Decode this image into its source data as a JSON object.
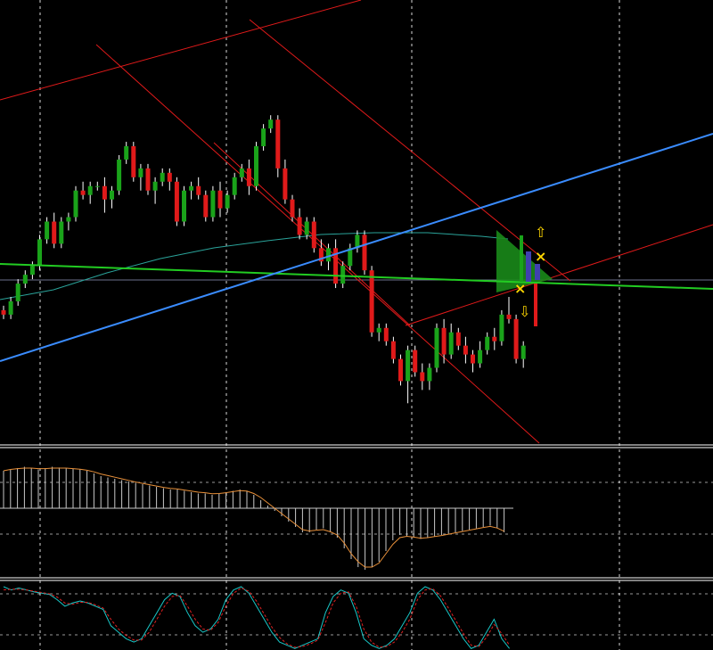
{
  "chart_data": [
    {
      "type": "candlestick",
      "pane": "price",
      "grid": true,
      "background": "#000000",
      "colors": {
        "bull": "#1aa31a",
        "bear": "#e01a1a",
        "wick": "#ffffff",
        "ma": "#2aa39a",
        "green_line": "#22cc22",
        "blue_line": "#3a8cff",
        "channel": "#e01a1a",
        "triangle_fill": "#1a8a1a",
        "bar_blue": "#4040b0",
        "arrow": "#ffd700"
      },
      "candles": [
        [
          120,
          121,
          118,
          119
        ],
        [
          119,
          123,
          118,
          122
        ],
        [
          122,
          127,
          121,
          126
        ],
        [
          126,
          129,
          125,
          128
        ],
        [
          128,
          131,
          127,
          130
        ],
        [
          130,
          137,
          129,
          136
        ],
        [
          136,
          141,
          135,
          140
        ],
        [
          140,
          142,
          134,
          135
        ],
        [
          135,
          141,
          134,
          140
        ],
        [
          140,
          142,
          138,
          141
        ],
        [
          141,
          148,
          140,
          147
        ],
        [
          147,
          149,
          145,
          146
        ],
        [
          146,
          149,
          144,
          148
        ],
        [
          148,
          149,
          147,
          148
        ],
        [
          148,
          150,
          142,
          145
        ],
        [
          145,
          148,
          143,
          147
        ],
        [
          147,
          155,
          146,
          154
        ],
        [
          154,
          158,
          153,
          157
        ],
        [
          157,
          158,
          149,
          150
        ],
        [
          150,
          153,
          147,
          152
        ],
        [
          152,
          153,
          146,
          147
        ],
        [
          147,
          150,
          144,
          149
        ],
        [
          149,
          152,
          148,
          151
        ],
        [
          151,
          152,
          147,
          149
        ],
        [
          149,
          150,
          139,
          140
        ],
        [
          140,
          148,
          139,
          147
        ],
        [
          147,
          149,
          145,
          148
        ],
        [
          148,
          150,
          145,
          146
        ],
        [
          146,
          147,
          140,
          141
        ],
        [
          141,
          148,
          140,
          147
        ],
        [
          147,
          149,
          141,
          143
        ],
        [
          143,
          147,
          142,
          146
        ],
        [
          146,
          151,
          145,
          150
        ],
        [
          150,
          153,
          149,
          152
        ],
        [
          152,
          154,
          146,
          148
        ],
        [
          148,
          158,
          147,
          157
        ],
        [
          157,
          162,
          156,
          161
        ],
        [
          161,
          164,
          160,
          163
        ],
        [
          163,
          164,
          150,
          152
        ],
        [
          152,
          154,
          144,
          145
        ],
        [
          145,
          146,
          140,
          141
        ],
        [
          141,
          143,
          136,
          137
        ],
        [
          137,
          141,
          136,
          140
        ],
        [
          140,
          141,
          133,
          134
        ],
        [
          134,
          136,
          130,
          131
        ],
        [
          131,
          135,
          129,
          134
        ],
        [
          134,
          136,
          125,
          126
        ],
        [
          126,
          131,
          125,
          130
        ],
        [
          130,
          135,
          129,
          134
        ],
        [
          134,
          138,
          133,
          137
        ],
        [
          137,
          138,
          128,
          129
        ],
        [
          129,
          130,
          114,
          115
        ],
        [
          115,
          117,
          113,
          116
        ],
        [
          116,
          117,
          112,
          113
        ],
        [
          113,
          114,
          108,
          109
        ],
        [
          109,
          110,
          103,
          104
        ],
        [
          104,
          112,
          99,
          111
        ],
        [
          111,
          112,
          105,
          106
        ],
        [
          106,
          108,
          102,
          104
        ],
        [
          104,
          108,
          102,
          107
        ],
        [
          107,
          117,
          106,
          116
        ],
        [
          116,
          118,
          108,
          110
        ],
        [
          110,
          117,
          109,
          115
        ],
        [
          115,
          116,
          111,
          112
        ],
        [
          112,
          114,
          108,
          110
        ],
        [
          110,
          111,
          106,
          108
        ],
        [
          108,
          113,
          107,
          111
        ],
        [
          111,
          115,
          110,
          114
        ],
        [
          114,
          116,
          111,
          113
        ],
        [
          113,
          120,
          112,
          119
        ],
        [
          119,
          123,
          117,
          118
        ],
        [
          118,
          119,
          108,
          109
        ],
        [
          109,
          113,
          107,
          112
        ]
      ],
      "indicators": {
        "moving_average": {
          "from": 100,
          "to": 114.5
        },
        "green_line": {
          "from": 109.6,
          "to": 106.3
        },
        "blue_line": {
          "from": 87.5,
          "to": 139.2
        },
        "channel_upper": {
          "from": 148,
          "to": 167
        },
        "channel_lower": {
          "from": 102,
          "to": 129
        }
      },
      "signals": {
        "up_arrow": "⇧",
        "down_arrow": "⇩",
        "cross": "×"
      }
    },
    {
      "type": "histogram",
      "pane": "oscillator",
      "values": [
        1.4,
        1.45,
        1.5,
        1.55,
        1.5,
        1.45,
        1.5,
        1.55,
        1.52,
        1.5,
        1.48,
        1.45,
        1.4,
        1.3,
        1.2,
        1.15,
        1.1,
        1.05,
        1.0,
        0.95,
        0.9,
        0.85,
        0.8,
        0.75,
        0.7,
        0.7,
        0.65,
        0.6,
        0.55,
        0.55,
        0.5,
        0.55,
        0.6,
        0.65,
        0.7,
        0.65,
        0.5,
        0.3,
        0.1,
        -0.1,
        -0.3,
        -0.5,
        -0.7,
        -0.9,
        -0.9,
        -0.8,
        -0.75,
        -0.9,
        -1.1,
        -1.5,
        -1.9,
        -2.2,
        -2.3,
        -2.2,
        -2.0,
        -1.6,
        -1.2,
        -1.0,
        -1.05,
        -1.1,
        -1.15,
        -1.1,
        -1.05,
        -1.0,
        -0.95,
        -0.9,
        -0.85,
        -0.8,
        -0.75,
        -0.7,
        -0.65,
        -0.75,
        -0.9
      ],
      "signal": [
        1.4,
        1.45,
        1.48,
        1.5,
        1.5,
        1.48,
        1.48,
        1.5,
        1.5,
        1.5,
        1.48,
        1.46,
        1.42,
        1.36,
        1.28,
        1.22,
        1.16,
        1.1,
        1.04,
        0.98,
        0.93,
        0.88,
        0.83,
        0.78,
        0.74,
        0.72,
        0.68,
        0.64,
        0.6,
        0.58,
        0.54,
        0.55,
        0.58,
        0.62,
        0.66,
        0.64,
        0.55,
        0.4,
        0.2,
        0.0,
        -0.2,
        -0.4,
        -0.6,
        -0.8,
        -0.85,
        -0.82,
        -0.8,
        -0.88,
        -1.0,
        -1.3,
        -1.7,
        -2.0,
        -2.2,
        -2.2,
        -2.05,
        -1.7,
        -1.35,
        -1.1,
        -1.05,
        -1.08,
        -1.12,
        -1.1,
        -1.06,
        -1.02,
        -0.97,
        -0.92,
        -0.87,
        -0.82,
        -0.77,
        -0.72,
        -0.68,
        -0.74,
        -0.86
      ]
    },
    {
      "type": "line",
      "pane": "stochastic",
      "series": [
        {
          "color": "#18c8c8",
          "values": [
            100,
            95,
            98,
            95,
            92,
            90,
            88,
            80,
            70,
            75,
            78,
            75,
            70,
            65,
            40,
            30,
            20,
            15,
            20,
            40,
            60,
            80,
            90,
            85,
            60,
            40,
            30,
            35,
            50,
            80,
            95,
            100,
            90,
            70,
            50,
            30,
            15,
            10,
            5,
            10,
            15,
            20,
            60,
            85,
            95,
            90,
            60,
            20,
            10,
            5,
            10,
            20,
            40,
            60,
            90,
            100,
            95,
            80,
            60,
            40,
            20,
            5,
            10,
            30,
            50,
            20,
            5
          ]
        },
        {
          "color": "#e02020",
          "values": [
            95,
            96,
            96,
            95,
            93,
            91,
            89,
            84,
            75,
            73,
            76,
            76,
            72,
            67,
            50,
            35,
            25,
            18,
            18,
            30,
            50,
            70,
            85,
            87,
            70,
            50,
            35,
            33,
            45,
            70,
            90,
            98,
            93,
            78,
            58,
            38,
            22,
            12,
            7,
            8,
            12,
            18,
            45,
            75,
            90,
            92,
            70,
            35,
            15,
            7,
            8,
            15,
            30,
            50,
            80,
            95,
            97,
            86,
            68,
            48,
            28,
            10,
            8,
            22,
            42,
            28,
            10
          ],
          "dashed": true
        }
      ]
    }
  ]
}
